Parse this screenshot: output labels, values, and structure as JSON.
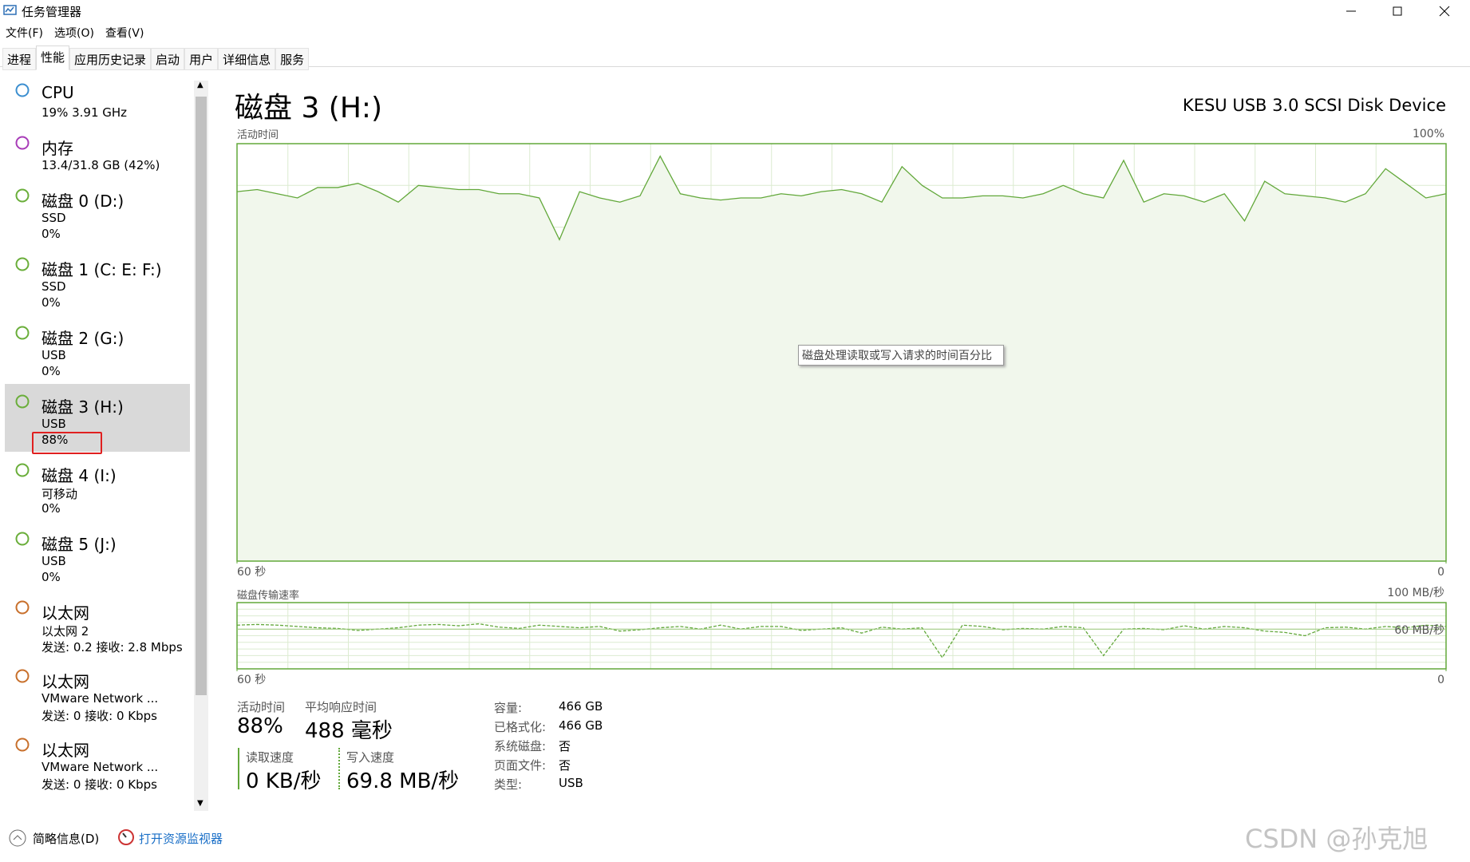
{
  "window": {
    "title": "任务管理器"
  },
  "menu": [
    "文件(F)",
    "选项(O)",
    "查看(V)"
  ],
  "tabs": [
    "进程",
    "性能",
    "应用历史记录",
    "启动",
    "用户",
    "详细信息",
    "服务"
  ],
  "active_tab": 1,
  "sidebar": {
    "selected": 5,
    "items": [
      {
        "name": "CPU",
        "lines": [
          "19% 3.91 GHz"
        ],
        "color": "#3c8fd0"
      },
      {
        "name": "内存",
        "lines": [
          "13.4/31.8 GB (42%)"
        ],
        "color": "#a83cb8"
      },
      {
        "name": "磁盘 0 (D:)",
        "lines": [
          "SSD",
          "0%"
        ],
        "color": "#6aae3a"
      },
      {
        "name": "磁盘 1 (C: E: F:)",
        "lines": [
          "SSD",
          "0%"
        ],
        "color": "#6aae3a"
      },
      {
        "name": "磁盘 2 (G:)",
        "lines": [
          "USB",
          "0%"
        ],
        "color": "#6aae3a"
      },
      {
        "name": "磁盘 3 (H:)",
        "lines": [
          "USB",
          "88%"
        ],
        "color": "#6aae3a"
      },
      {
        "name": "磁盘 4 (I:)",
        "lines": [
          "可移动",
          "0%"
        ],
        "color": "#6aae3a"
      },
      {
        "name": "磁盘 5 (J:)",
        "lines": [
          "USB",
          "0%"
        ],
        "color": "#6aae3a"
      },
      {
        "name": "以太网",
        "lines": [
          "以太网 2",
          "发送: 0.2 接收: 2.8 Mbps"
        ],
        "color": "#c8702c"
      },
      {
        "name": "以太网",
        "lines": [
          "VMware Network ...",
          "发送: 0 接收: 0 Kbps"
        ],
        "color": "#c8702c"
      },
      {
        "name": "以太网",
        "lines": [
          "VMware Network ...",
          "发送: 0 接收: 0 Kbps"
        ],
        "color": "#c8702c"
      }
    ]
  },
  "main": {
    "title": "磁盘 3 (H:)",
    "device": "KESU USB 3.0 SCSI Disk Device",
    "tooltip": "磁盘处理读取或写入请求的时间百分比",
    "activity_graph": {
      "type": "line",
      "label": "活动时间",
      "color": "#62a83a",
      "ylim": [
        0,
        100
      ],
      "yticks": [
        {
          "value": 100,
          "label": "100%"
        }
      ],
      "xlim": [
        60,
        0
      ],
      "xticks": [
        {
          "value": 60,
          "label": "60 秒"
        },
        0
      ],
      "values": [
        88.5,
        89,
        88,
        87,
        89.5,
        89.5,
        90.5,
        88.5,
        86,
        90,
        89.5,
        89,
        89,
        88,
        88,
        87,
        77,
        88.5,
        87,
        86,
        87.5,
        97,
        88,
        87,
        86.5,
        87,
        87,
        88,
        87.5,
        88.5,
        89,
        88,
        86,
        94.5,
        90,
        87,
        87,
        87.5,
        87.5,
        87,
        88,
        90,
        88,
        87,
        96,
        86,
        88,
        87.5,
        86,
        88,
        81.5,
        91,
        88,
        87.5,
        87,
        86,
        88,
        94,
        90.5,
        87,
        88
      ]
    },
    "transfer_graph": {
      "type": "line",
      "label": "磁盘传输速率",
      "color": "#62a83a",
      "ylim": [
        0,
        100
      ],
      "yticks": [
        {
          "value": 100,
          "label": "100 MB/秒"
        },
        {
          "value": 60,
          "label": "60 MB/秒"
        }
      ],
      "xlim": [
        60,
        0
      ],
      "xticks": [
        {
          "value": 60,
          "label": "60 秒"
        },
        0
      ],
      "values": [
        66,
        67,
        66,
        64,
        62,
        61,
        58,
        60,
        62,
        66,
        67,
        65,
        68,
        63,
        61,
        66,
        64,
        62,
        64,
        57,
        59,
        62,
        64,
        60,
        66,
        60,
        64,
        64,
        58,
        60,
        62,
        54,
        63,
        60,
        62,
        17,
        66,
        64,
        59,
        61,
        60,
        64,
        62,
        20,
        60,
        61,
        59,
        65,
        60,
        64,
        62,
        57,
        55,
        50,
        62,
        63,
        60,
        64,
        62,
        66,
        64
      ]
    },
    "stats": [
      {
        "label": "活动时间",
        "value": "88%"
      },
      {
        "label": "平均响应时间",
        "value": "488 毫秒"
      }
    ],
    "speeds": [
      {
        "label": "读取速度",
        "value": "0 KB/秒"
      },
      {
        "label": "写入速度",
        "value": "69.8 MB/秒"
      }
    ],
    "properties": [
      [
        "容量:",
        "466 GB"
      ],
      [
        "已格式化:",
        "466 GB"
      ],
      [
        "系统磁盘:",
        "否"
      ],
      [
        "页面文件:",
        "否"
      ],
      [
        "类型:",
        "USB"
      ]
    ]
  },
  "footer": {
    "brief": "简略信息(D)",
    "monitor": "打开资源监视器",
    "watermark": "CSDN @孙克旭"
  }
}
